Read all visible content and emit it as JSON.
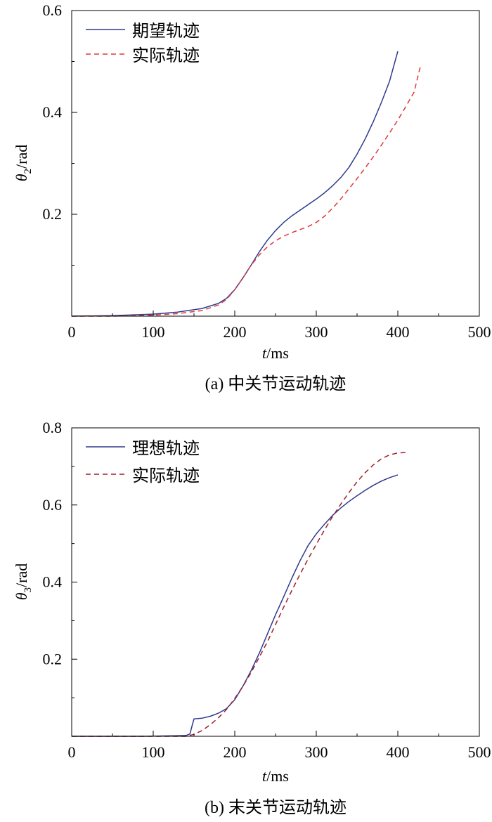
{
  "chart_data": [
    {
      "type": "line",
      "caption": "(a) 中关节运动轨迹",
      "xlabel_var": "t",
      "xlabel_unit": "/ms",
      "ylabel_var": "θ",
      "ylabel_sub": "2",
      "ylabel_unit": "/rad",
      "xlim": [
        0,
        500
      ],
      "ylim": [
        0,
        0.6
      ],
      "xticks": [
        0,
        100,
        200,
        300,
        400,
        500
      ],
      "yticks": [
        0.2,
        0.4,
        0.6
      ],
      "ytick_labels": [
        "0.2",
        "0.4",
        "0.6"
      ],
      "legend_position": "top-left",
      "series": [
        {
          "name": "期望轨迹",
          "style": "solid",
          "color": "#2f3a8c",
          "x": [
            0,
            50,
            100,
            130,
            160,
            180,
            190,
            200,
            210,
            220,
            230,
            240,
            250,
            260,
            270,
            280,
            290,
            300,
            310,
            320,
            330,
            340,
            350,
            360,
            370,
            380,
            390,
            400
          ],
          "y": [
            0,
            0.001,
            0.004,
            0.008,
            0.015,
            0.025,
            0.035,
            0.052,
            0.075,
            0.1,
            0.126,
            0.149,
            0.168,
            0.184,
            0.197,
            0.208,
            0.219,
            0.23,
            0.242,
            0.256,
            0.272,
            0.292,
            0.318,
            0.348,
            0.382,
            0.42,
            0.462,
            0.52
          ]
        },
        {
          "name": "实际轨迹",
          "style": "dashed",
          "color": "#e0373a",
          "x": [
            0,
            50,
            100,
            130,
            160,
            180,
            190,
            200,
            210,
            220,
            230,
            240,
            250,
            260,
            270,
            280,
            290,
            300,
            310,
            320,
            330,
            340,
            350,
            360,
            370,
            380,
            390,
            400,
            410,
            420,
            428
          ],
          "y": [
            0,
            0,
            0.002,
            0.005,
            0.011,
            0.022,
            0.033,
            0.052,
            0.075,
            0.1,
            0.12,
            0.136,
            0.148,
            0.157,
            0.164,
            0.17,
            0.176,
            0.184,
            0.196,
            0.212,
            0.23,
            0.25,
            0.27,
            0.291,
            0.313,
            0.336,
            0.36,
            0.385,
            0.412,
            0.44,
            0.493
          ]
        }
      ]
    },
    {
      "type": "line",
      "caption": "(b) 末关节运动轨迹",
      "xlabel_var": "t",
      "xlabel_unit": "/ms",
      "ylabel_var": "θ",
      "ylabel_sub": "3",
      "ylabel_unit": "/rad",
      "xlim": [
        0,
        500
      ],
      "ylim": [
        0,
        0.8
      ],
      "xticks": [
        0,
        100,
        200,
        300,
        400,
        500
      ],
      "yticks": [
        0.2,
        0.4,
        0.6,
        0.8
      ],
      "ytick_labels": [
        "0.2",
        "0.4",
        "0.6",
        "0.8"
      ],
      "legend_position": "top-left",
      "series": [
        {
          "name": "理想轨迹",
          "style": "solid",
          "color": "#2f3a8c",
          "x": [
            0,
            90,
            140,
            145,
            148,
            150,
            160,
            170,
            180,
            190,
            200,
            210,
            220,
            230,
            240,
            250,
            260,
            270,
            280,
            290,
            300,
            310,
            320,
            330,
            340,
            350,
            360,
            370,
            380,
            390,
            400
          ],
          "y": [
            0,
            0,
            0.002,
            0.006,
            0.03,
            0.045,
            0.047,
            0.052,
            0.06,
            0.072,
            0.095,
            0.13,
            0.17,
            0.215,
            0.265,
            0.315,
            0.362,
            0.41,
            0.455,
            0.495,
            0.525,
            0.55,
            0.573,
            0.592,
            0.609,
            0.624,
            0.638,
            0.651,
            0.662,
            0.671,
            0.678
          ]
        },
        {
          "name": "实际轨迹",
          "style": "dashed",
          "color": "#9e1f28",
          "x": [
            0,
            140,
            150,
            160,
            170,
            180,
            190,
            200,
            210,
            220,
            230,
            240,
            250,
            260,
            270,
            280,
            290,
            300,
            310,
            320,
            330,
            340,
            350,
            360,
            370,
            380,
            390,
            400,
            410
          ],
          "y": [
            0,
            0,
            0.005,
            0.015,
            0.03,
            0.048,
            0.07,
            0.098,
            0.13,
            0.165,
            0.205,
            0.245,
            0.29,
            0.335,
            0.378,
            0.42,
            0.46,
            0.498,
            0.535,
            0.57,
            0.602,
            0.632,
            0.66,
            0.684,
            0.704,
            0.72,
            0.73,
            0.735,
            0.736
          ]
        }
      ]
    }
  ]
}
